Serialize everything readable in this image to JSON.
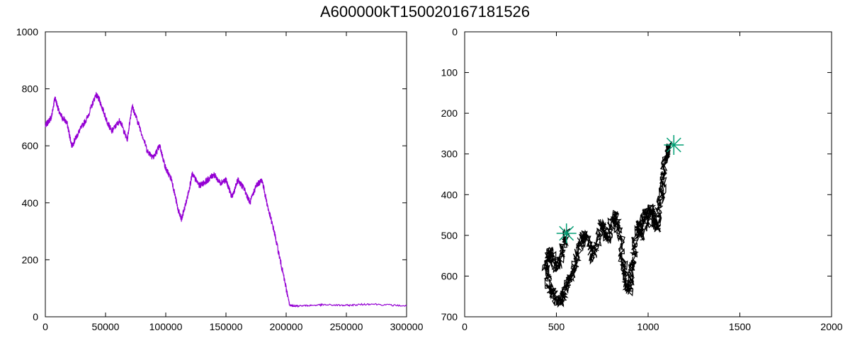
{
  "title": "A600000kT150020167181526",
  "colors": {
    "trace": "#9400d3",
    "path": "#000000",
    "marker": "#009e73",
    "frame": "#000000"
  },
  "chart_data": [
    {
      "type": "line",
      "title": "",
      "xlabel": "",
      "ylabel": "",
      "xlim": [
        0,
        300000
      ],
      "ylim": [
        0,
        1000
      ],
      "x_ticks": [
        0,
        50000,
        100000,
        150000,
        200000,
        250000,
        300000
      ],
      "x_tick_labels": [
        "0",
        "50000",
        "100000",
        "150000",
        "200000",
        "250000",
        "300000"
      ],
      "y_ticks": [
        0,
        200,
        400,
        600,
        800,
        1000
      ],
      "y_tick_labels": [
        "0",
        "200",
        "400",
        "600",
        "800",
        "1000"
      ],
      "grid": false,
      "series": [
        {
          "x": [
            0,
            5000,
            8000,
            12000,
            18000,
            22000,
            28000,
            35000,
            42000,
            45000,
            50000,
            55000,
            62000,
            68000,
            72000,
            78000,
            85000,
            90000,
            95000,
            100000,
            105000,
            110000,
            113000,
            118000,
            122000,
            128000,
            135000,
            140000,
            145000,
            150000,
            155000,
            160000,
            165000,
            170000,
            175000,
            180000,
            185000,
            190000,
            195000,
            200000,
            203000,
            210000,
            230000,
            250000,
            270000,
            300000
          ],
          "y": [
            670,
            700,
            770,
            710,
            680,
            600,
            650,
            700,
            780,
            760,
            700,
            650,
            690,
            620,
            740,
            670,
            580,
            560,
            600,
            520,
            480,
            380,
            340,
            420,
            500,
            460,
            480,
            500,
            470,
            480,
            420,
            480,
            450,
            400,
            460,
            480,
            380,
            300,
            200,
            100,
            40,
            38,
            42,
            40,
            45,
            38
          ]
        }
      ]
    },
    {
      "type": "scatter",
      "title": "",
      "xlabel": "",
      "ylabel": "",
      "xlim": [
        0,
        2000
      ],
      "ylim": [
        700,
        0
      ],
      "y_inverted": true,
      "x_ticks": [
        0,
        500,
        1000,
        1500,
        2000
      ],
      "x_tick_labels": [
        "0",
        "500",
        "1000",
        "1500",
        "2000"
      ],
      "y_ticks": [
        0,
        100,
        200,
        300,
        400,
        500,
        600,
        700
      ],
      "y_tick_labels": [
        "0",
        "100",
        "200",
        "300",
        "400",
        "500",
        "600",
        "700"
      ],
      "grid": false,
      "series": [
        {
          "mode": "path",
          "x": [
            1115,
            1105,
            1090,
            1080,
            1075,
            1060,
            1050,
            1040,
            1030,
            1010,
            1000,
            990,
            970,
            960,
            950,
            930,
            920,
            910,
            900,
            880,
            870,
            860,
            850,
            830,
            820,
            790,
            780,
            760,
            740,
            720,
            700,
            680,
            660,
            640,
            620,
            600,
            580,
            560,
            545,
            530,
            500,
            480,
            460,
            440,
            450,
            470,
            480,
            500,
            520,
            540,
            560
          ],
          "y": [
            280,
            300,
            320,
            360,
            400,
            440,
            480,
            470,
            450,
            430,
            480,
            440,
            460,
            500,
            470,
            510,
            560,
            600,
            640,
            620,
            580,
            560,
            500,
            470,
            450,
            480,
            520,
            480,
            470,
            520,
            560,
            520,
            500,
            510,
            540,
            580,
            600,
            620,
            640,
            660,
            660,
            640,
            620,
            580,
            560,
            540,
            560,
            580,
            560,
            520,
            495
          ]
        },
        {
          "mode": "markers",
          "marker": "asterisk",
          "x": [
            555,
            1140
          ],
          "y": [
            495,
            278
          ]
        }
      ]
    }
  ]
}
